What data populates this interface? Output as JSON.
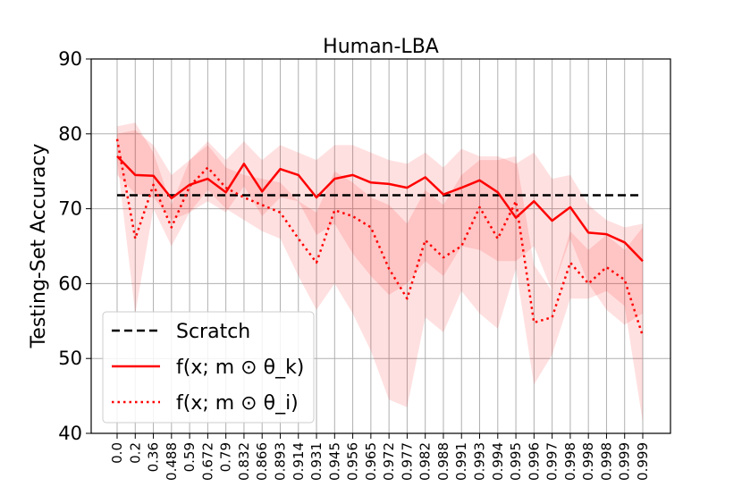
{
  "chart_data": {
    "type": "line",
    "title": "Human-LBA",
    "xlabel": "",
    "ylabel": "Testing-Set Accuracy",
    "ylim": [
      40,
      90
    ],
    "yticks": [
      "40",
      "50",
      "60",
      "70",
      "80",
      "90"
    ],
    "grid": true,
    "categories": [
      "0.0",
      "0.2",
      "0.36",
      "0.488",
      "0.59",
      "0.672",
      "0.79",
      "0.832",
      "0.866",
      "0.893",
      "0.914",
      "0.931",
      "0.945",
      "0.956",
      "0.965",
      "0.972",
      "0.977",
      "0.982",
      "0.988",
      "0.991",
      "0.993",
      "0.994",
      "0.995",
      "0.996",
      "0.997",
      "0.998",
      "0.998",
      "0.998",
      "0.999",
      "0.999"
    ],
    "legend_position": "lower-left",
    "series": [
      {
        "name": "Scratch",
        "style": "dashed",
        "color": "#000000",
        "values": [
          71.8,
          71.8,
          71.8,
          71.8,
          71.8,
          71.8,
          71.8,
          71.8,
          71.8,
          71.8,
          71.8,
          71.8,
          71.8,
          71.8,
          71.8,
          71.8,
          71.8,
          71.8,
          71.8,
          71.8,
          71.8,
          71.8,
          71.8,
          71.8,
          71.8,
          71.8,
          71.8,
          71.8,
          71.8,
          71.8
        ]
      },
      {
        "name": "f(x; m ⊙ θ_k)",
        "style": "solid",
        "color": "#ff0000",
        "values": [
          77.0,
          74.5,
          74.4,
          71.4,
          73.2,
          74.0,
          72.2,
          76.0,
          72.3,
          75.3,
          74.5,
          71.5,
          74.0,
          74.5,
          73.5,
          73.3,
          72.8,
          74.2,
          71.9,
          72.8,
          73.8,
          72.2,
          68.8,
          71.0,
          68.4,
          70.2,
          66.8,
          66.6,
          65.5,
          63.0
        ],
        "band_lower": [
          74.5,
          72.0,
          71.5,
          68.5,
          69.5,
          71.0,
          69.5,
          73.0,
          69.0,
          71.5,
          71.0,
          66.5,
          68.0,
          64.0,
          61.0,
          58.5,
          60.0,
          63.0,
          61.0,
          65.0,
          64.5,
          63.0,
          63.0,
          65.0,
          59.0,
          66.0,
          60.0,
          56.5,
          54.5,
          56.0
        ],
        "band_upper": [
          80.0,
          80.5,
          78.5,
          74.5,
          76.5,
          79.0,
          76.5,
          79.0,
          76.5,
          78.5,
          77.5,
          76.5,
          78.5,
          78.5,
          77.5,
          76.5,
          76.0,
          77.5,
          75.5,
          78.0,
          77.0,
          77.0,
          76.0,
          77.5,
          74.0,
          74.5,
          70.5,
          68.5,
          67.5,
          68.0
        ]
      },
      {
        "name": "f(x; m ⊙ θ_i)",
        "style": "dotted",
        "color": "#ff0000",
        "values": [
          79.3,
          66.0,
          73.2,
          67.5,
          73.0,
          75.5,
          72.8,
          71.5,
          70.5,
          69.5,
          66.0,
          62.8,
          69.8,
          69.0,
          67.5,
          62.0,
          58.0,
          65.8,
          63.5,
          65.0,
          70.2,
          66.0,
          71.0,
          54.8,
          55.5,
          62.8,
          60.0,
          62.2,
          60.5,
          53.0
        ],
        "band_lower": [
          76.5,
          56.0,
          70.0,
          65.0,
          69.5,
          72.5,
          70.0,
          68.5,
          67.0,
          66.0,
          61.0,
          56.5,
          60.0,
          56.0,
          51.0,
          44.5,
          43.5,
          55.5,
          53.5,
          59.0,
          56.0,
          54.0,
          62.0,
          46.5,
          50.5,
          58.0,
          58.0,
          59.0,
          57.0,
          41.5
        ],
        "band_upper": [
          81.0,
          81.5,
          77.5,
          70.5,
          76.5,
          78.5,
          75.5,
          74.5,
          74.0,
          73.5,
          71.0,
          69.5,
          75.0,
          73.5,
          71.5,
          70.5,
          68.0,
          72.5,
          70.5,
          74.5,
          76.5,
          76.5,
          77.0,
          62.5,
          59.0,
          67.0,
          64.5,
          66.5,
          64.5,
          67.5
        ]
      }
    ]
  }
}
